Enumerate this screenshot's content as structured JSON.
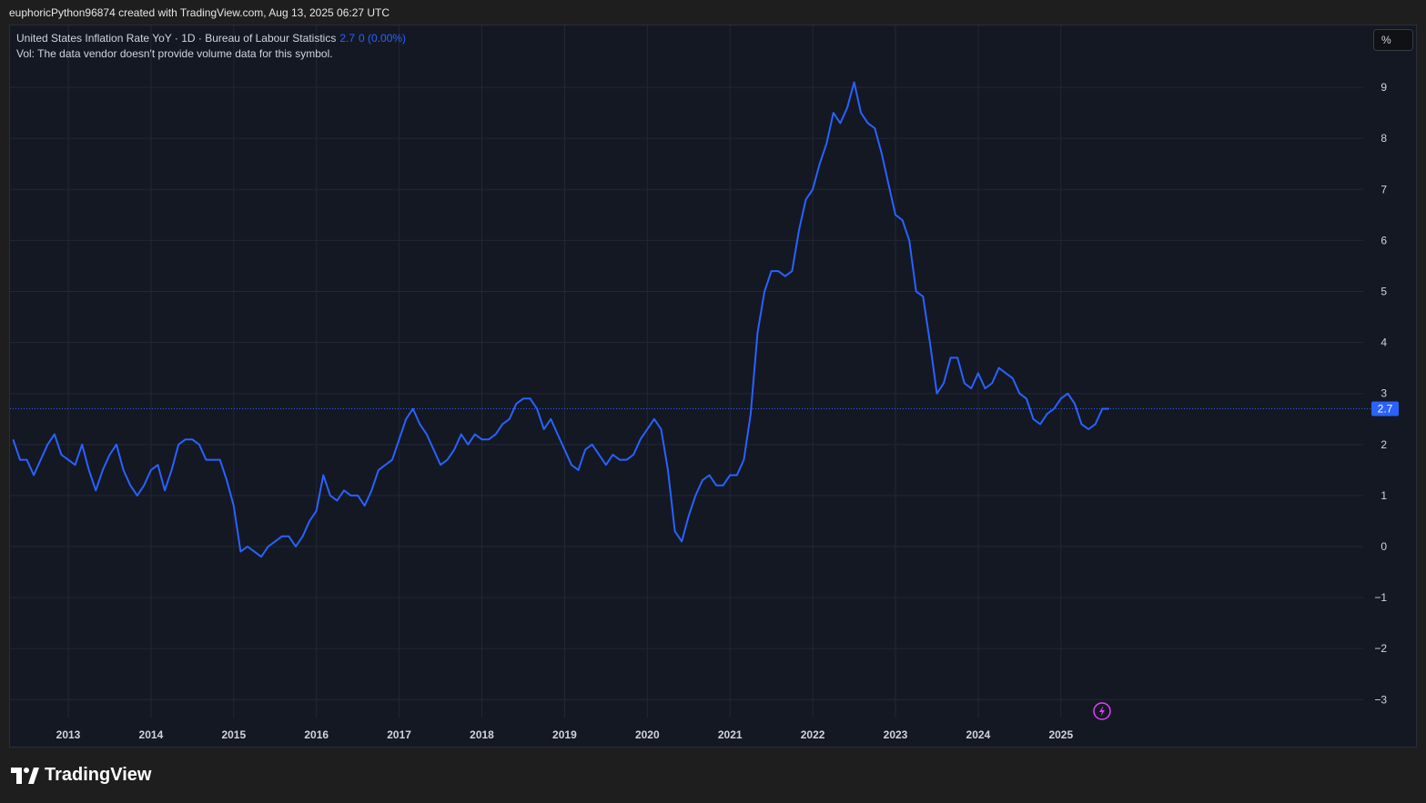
{
  "header": {
    "caption": "euphoricPython96874 created with TradingView.com, Aug 13, 2025 06:27 UTC"
  },
  "legend": {
    "symbol": "United States Inflation Rate YoY · 1D · Bureau of Labour Statistics",
    "last_value": "2.7",
    "change": "0 (0.00%)",
    "volume_note": "Vol: The data vendor doesn't provide volume data for this symbol."
  },
  "toolbar": {
    "unit_label": "%"
  },
  "brand": {
    "name": "TradingView"
  },
  "colors": {
    "line": "#2962ff",
    "background": "#141823",
    "grid": "#222735",
    "axis_text": "#d1d4dc",
    "badge": "#2962ff",
    "lightning": "#e040fb"
  },
  "icons": [
    "tradingview-logo-icon",
    "lightning-icon"
  ],
  "chart_data": {
    "type": "line",
    "title": "United States Inflation Rate YoY",
    "xlabel": "",
    "ylabel": "",
    "ylim": [
      -3,
      9
    ],
    "yticks": [
      9,
      8,
      7,
      6,
      5,
      4,
      3,
      2,
      1,
      0,
      -1,
      -2,
      -3
    ],
    "ytick_labels": [
      "9",
      "8",
      "7",
      "6",
      "5",
      "4",
      "3",
      "2",
      "1",
      "0",
      "−1",
      "−2",
      "−3"
    ],
    "xticks": [
      "2013",
      "2014",
      "2015",
      "2016",
      "2017",
      "2018",
      "2019",
      "2020",
      "2021",
      "2022",
      "2023",
      "2024",
      "2025"
    ],
    "grid": true,
    "last_value_label": "2.7",
    "series": [
      {
        "x_start": "2012-05",
        "x_frequency": "monthly",
        "values": [
          2.1,
          1.7,
          1.7,
          1.4,
          1.7,
          2.0,
          2.2,
          1.8,
          1.7,
          1.6,
          2.0,
          1.5,
          1.1,
          1.5,
          1.8,
          2.0,
          1.5,
          1.2,
          1.0,
          1.2,
          1.5,
          1.6,
          1.1,
          1.5,
          2.0,
          2.1,
          2.1,
          2.0,
          1.7,
          1.7,
          1.7,
          1.3,
          0.8,
          -0.1,
          0.0,
          -0.1,
          -0.2,
          0.0,
          0.1,
          0.2,
          0.2,
          0.0,
          0.2,
          0.5,
          0.7,
          1.4,
          1.0,
          0.9,
          1.1,
          1.0,
          1.0,
          0.8,
          1.1,
          1.5,
          1.6,
          1.7,
          2.1,
          2.5,
          2.7,
          2.4,
          2.2,
          1.9,
          1.6,
          1.7,
          1.9,
          2.2,
          2.0,
          2.2,
          2.1,
          2.1,
          2.2,
          2.4,
          2.5,
          2.8,
          2.9,
          2.9,
          2.7,
          2.3,
          2.5,
          2.2,
          1.9,
          1.6,
          1.5,
          1.9,
          2.0,
          1.8,
          1.6,
          1.8,
          1.7,
          1.7,
          1.8,
          2.1,
          2.3,
          2.5,
          2.3,
          1.5,
          0.3,
          0.1,
          0.6,
          1.0,
          1.3,
          1.4,
          1.2,
          1.2,
          1.4,
          1.4,
          1.7,
          2.6,
          4.2,
          5.0,
          5.4,
          5.4,
          5.3,
          5.4,
          6.2,
          6.8,
          7.0,
          7.5,
          7.9,
          8.5,
          8.3,
          8.6,
          9.1,
          8.5,
          8.3,
          8.2,
          7.7,
          7.1,
          6.5,
          6.4,
          6.0,
          5.0,
          4.9,
          4.0,
          3.0,
          3.2,
          3.7,
          3.7,
          3.2,
          3.1,
          3.4,
          3.1,
          3.2,
          3.5,
          3.4,
          3.3,
          3.0,
          2.9,
          2.5,
          2.4,
          2.6,
          2.7,
          2.9,
          3.0,
          2.8,
          2.4,
          2.3,
          2.4,
          2.7,
          2.7
        ]
      }
    ]
  }
}
